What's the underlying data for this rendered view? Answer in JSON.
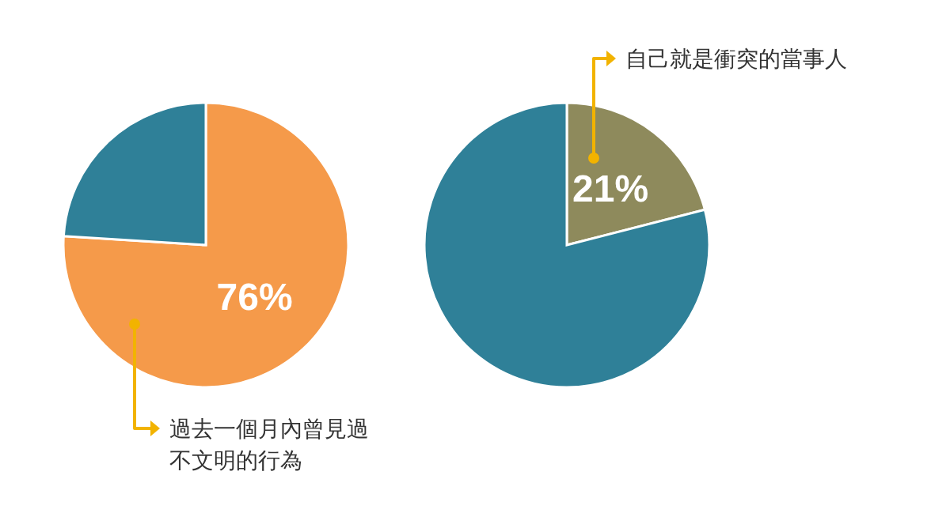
{
  "chart_data": [
    {
      "type": "pie",
      "categories": [
        null,
        null
      ],
      "values": [
        76,
        24
      ],
      "colors": [
        "#f59a4a",
        "#2f8098"
      ],
      "value_labels": [
        "76%",
        null
      ],
      "annotations": [
        "過去一個月內曾見過",
        "不文明的行為"
      ]
    },
    {
      "type": "pie",
      "categories": [
        null,
        null
      ],
      "values": [
        21,
        79
      ],
      "colors": [
        "#8e8a5c",
        "#2f8098"
      ],
      "value_labels": [
        "21%",
        null
      ],
      "annotations": [
        "自己就是衝突的當事人"
      ]
    }
  ]
}
